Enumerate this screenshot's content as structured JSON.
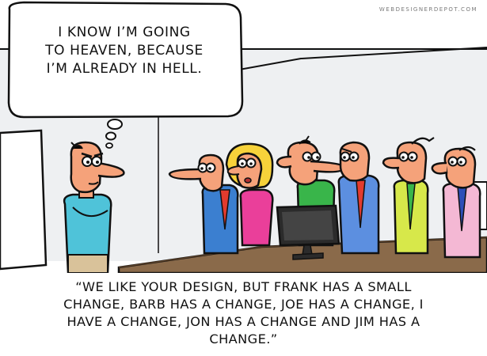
{
  "credit": "WEBDESIGNERDEPOT.COM",
  "thought_bubble": {
    "lines": [
      "I KNOW I’M GOING",
      "TO HEAVEN, BECAUSE",
      "I’M ALREADY IN HELL."
    ]
  },
  "caption": {
    "lines": [
      "“WE LIKE YOUR DESIGN, BUT FRANK HAS A SMALL",
      "CHANGE, BARB HAS A CHANGE, JOE HAS A CHANGE, I",
      "HAVE A CHANGE, JON HAS A CHANGE AND JIM HAS A",
      "CHANGE.”"
    ]
  },
  "colors": {
    "wall": "#eef0f2",
    "table": "#8a6a4a",
    "outline": "#111111",
    "skin": "#f5a27a",
    "barb_hair": "#f7d23a"
  }
}
